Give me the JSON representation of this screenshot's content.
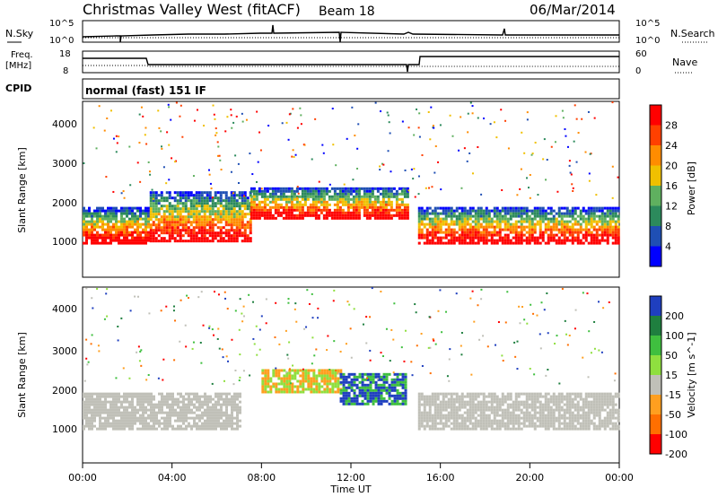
{
  "header": {
    "station": "Christmas Valley West (fitACF)",
    "beam": "Beam 18",
    "date": "06/Mar/2014",
    "mode": "normal (fast) 151 IF"
  },
  "strips": {
    "nsky_label": "N.Sky",
    "nsearch_label": "N.Search",
    "freq_label_1": "Freq.",
    "freq_label_2": "[MHz]",
    "nave_label": "Nave",
    "cpid_label": "CPID",
    "left_ticks_noise": [
      "10^5",
      "10^0"
    ],
    "right_ticks_noise": [
      "10^5",
      "10^0"
    ],
    "left_ticks_freq": [
      "18",
      "8"
    ],
    "right_ticks_nave": [
      "60",
      "0"
    ]
  },
  "time_axis": {
    "label": "Time UT",
    "ticks": [
      "00:00",
      "04:00",
      "08:00",
      "12:00",
      "16:00",
      "20:00",
      "00:00"
    ]
  },
  "panels": {
    "power": {
      "ylabel": "Slant Range [km]",
      "yticks": [
        "1000",
        "2000",
        "3000",
        "4000"
      ],
      "colorbar_label": "Power [dB]",
      "colorbar_ticks": [
        "4",
        "8",
        "12",
        "16",
        "20",
        "24",
        "28"
      ],
      "colors": [
        "#0000ff",
        "#1f4fb4",
        "#2c8a5c",
        "#5fb05f",
        "#f0c000",
        "#ff8c00",
        "#ff4000",
        "#ff0000"
      ]
    },
    "velocity": {
      "ylabel": "Slant Range [km]",
      "yticks": [
        "1000",
        "2000",
        "3000",
        "4000"
      ],
      "colorbar_label": "Velocity [m s^-1]",
      "colorbar_ticks": [
        "200",
        "100",
        "50",
        "15",
        "-15",
        "-50",
        "-100",
        "-200"
      ],
      "colors": [
        "#1f3fbf",
        "#1f7f3f",
        "#3fbf3f",
        "#8fdf3f",
        "#c0c0b8",
        "#ff9f1f",
        "#ff6f00",
        "#ff0000"
      ]
    }
  },
  "chart_data": {
    "type": "heatmap",
    "x_unit": "hours UT",
    "xlim": [
      0,
      24
    ],
    "ylim_km": [
      0,
      4500
    ],
    "power_regions": [
      {
        "t0": 0.0,
        "t1": 3.0,
        "r0": 900,
        "r1": 1800,
        "level": "high"
      },
      {
        "t0": 3.0,
        "t1": 7.5,
        "r0": 900,
        "r1": 2200,
        "level": "medium"
      },
      {
        "t0": 7.5,
        "t1": 14.5,
        "r0": 1500,
        "r1": 2300,
        "level": "medium-high"
      },
      {
        "t0": 15.0,
        "t1": 24.0,
        "r0": 900,
        "r1": 1800,
        "level": "high"
      }
    ],
    "velocity_regions": [
      {
        "t0": 0.0,
        "t1": 7.0,
        "r0": 900,
        "r1": 1800,
        "class": "ground scatter"
      },
      {
        "t0": 8.0,
        "t1": 11.5,
        "r0": 1800,
        "r1": 2400,
        "class": "positive"
      },
      {
        "t0": 11.5,
        "t1": 14.5,
        "r0": 1500,
        "r1": 2300,
        "class": "strong positive"
      },
      {
        "t0": 15.0,
        "t1": 24.0,
        "r0": 900,
        "r1": 1800,
        "class": "ground scatter"
      }
    ]
  }
}
